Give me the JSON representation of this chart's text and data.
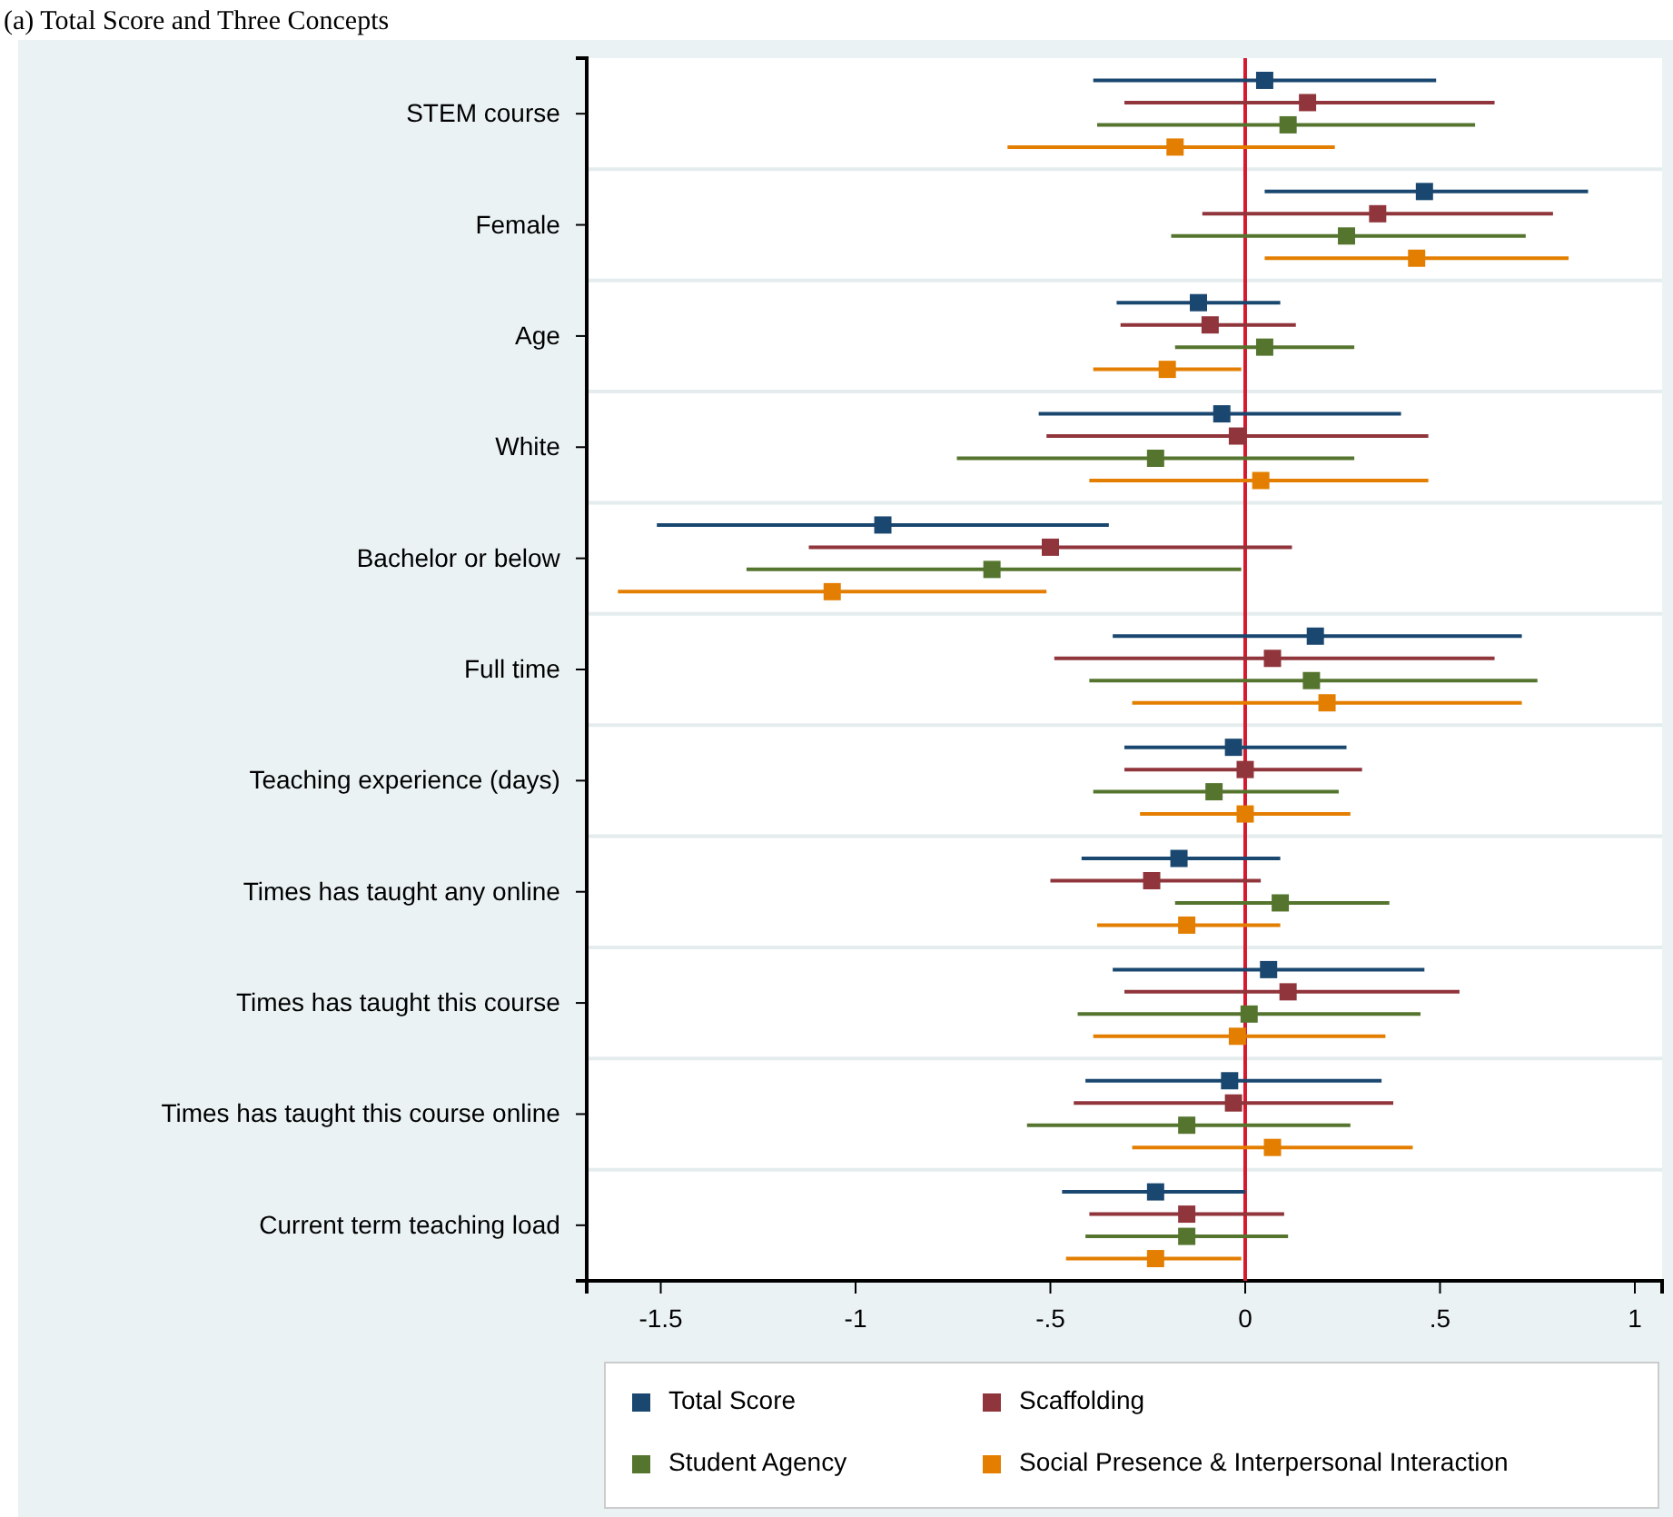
{
  "chart_data": {
    "type": "scatter",
    "orientation": "horizontal",
    "title": "(a) Total Score and Three Concepts",
    "categories": [
      "STEM course",
      "Female",
      "Age",
      "White",
      "Bachelor or below",
      "Full time",
      "Teaching experience (days)",
      "Times has taught any online",
      "Times has taught this course",
      "Times has taught this course online",
      "Current term teaching load"
    ],
    "series": [
      {
        "name": "Total Score",
        "color": "#1a476f",
        "values": [
          0.05,
          0.46,
          -0.12,
          -0.06,
          -0.93,
          0.18,
          -0.03,
          -0.17,
          0.06,
          -0.04,
          -0.23
        ],
        "errors": [
          [
            -0.39,
            0.49
          ],
          [
            0.05,
            0.88
          ],
          [
            -0.33,
            0.09
          ],
          [
            -0.53,
            0.4
          ],
          [
            -1.51,
            -0.35
          ],
          [
            -0.34,
            0.71
          ],
          [
            -0.31,
            0.26
          ],
          [
            -0.42,
            0.09
          ],
          [
            -0.34,
            0.46
          ],
          [
            -0.41,
            0.35
          ],
          [
            -0.47,
            0.0
          ]
        ]
      },
      {
        "name": "Scaffolding",
        "color": "#90353b",
        "values": [
          0.16,
          0.34,
          -0.09,
          -0.02,
          -0.5,
          0.07,
          0.0,
          -0.24,
          0.11,
          -0.03,
          -0.15
        ],
        "errors": [
          [
            -0.31,
            0.64
          ],
          [
            -0.11,
            0.79
          ],
          [
            -0.32,
            0.13
          ],
          [
            -0.51,
            0.47
          ],
          [
            -1.12,
            0.12
          ],
          [
            -0.49,
            0.64
          ],
          [
            -0.31,
            0.3
          ],
          [
            -0.5,
            0.04
          ],
          [
            -0.31,
            0.55
          ],
          [
            -0.44,
            0.38
          ],
          [
            -0.4,
            0.1
          ]
        ]
      },
      {
        "name": "Student Agency",
        "color": "#55752f",
        "values": [
          0.11,
          0.26,
          0.05,
          -0.23,
          -0.65,
          0.17,
          -0.08,
          0.09,
          0.01,
          -0.15,
          -0.15
        ],
        "errors": [
          [
            -0.38,
            0.59
          ],
          [
            -0.19,
            0.72
          ],
          [
            -0.18,
            0.28
          ],
          [
            -0.74,
            0.28
          ],
          [
            -1.28,
            -0.01
          ],
          [
            -0.4,
            0.75
          ],
          [
            -0.39,
            0.24
          ],
          [
            -0.18,
            0.37
          ],
          [
            -0.43,
            0.45
          ],
          [
            -0.56,
            0.27
          ],
          [
            -0.41,
            0.11
          ]
        ]
      },
      {
        "name": "Social Presence & Interpersonal Interaction",
        "color": "#e37e00",
        "values": [
          -0.18,
          0.44,
          -0.2,
          0.04,
          -1.06,
          0.21,
          0.0,
          -0.15,
          -0.02,
          0.07,
          -0.23
        ],
        "errors": [
          [
            -0.61,
            0.23
          ],
          [
            0.05,
            0.83
          ],
          [
            -0.39,
            -0.01
          ],
          [
            -0.4,
            0.47
          ],
          [
            -1.61,
            -0.51
          ],
          [
            -0.29,
            0.71
          ],
          [
            -0.27,
            0.27
          ],
          [
            -0.38,
            0.09
          ],
          [
            -0.39,
            0.36
          ],
          [
            -0.29,
            0.43
          ],
          [
            -0.46,
            -0.01
          ]
        ]
      }
    ],
    "xlim": [
      -1.69,
      1.07
    ],
    "xticks": [
      {
        "value": -1.5,
        "label": "-1.5"
      },
      {
        "value": -1,
        "label": "-1"
      },
      {
        "value": -0.5,
        "label": "-.5"
      },
      0,
      {
        "value": 0.5,
        "label": ".5"
      },
      1
    ],
    "ref_lines": [
      {
        "axis": "x",
        "value": 0,
        "color": "#d7192f"
      }
    ],
    "grid": "y",
    "legend": "bottom",
    "marker": "square"
  }
}
